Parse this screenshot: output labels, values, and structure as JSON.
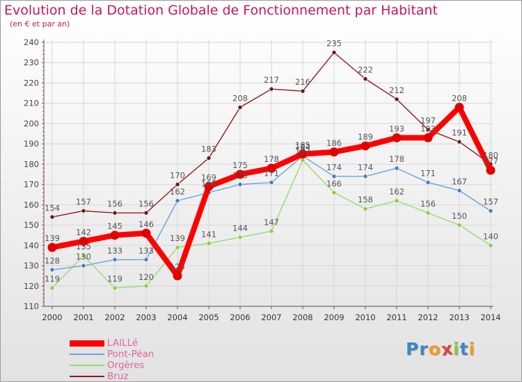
{
  "title": "Evolution de la Dotation Globale de Fonctionnement par Habitant",
  "subtitle": "(en € et par an)",
  "logo": {
    "text": "Proxiti",
    "letter_colors": [
      "#3b87c8",
      "#3b87c8",
      "#f39a1e",
      "#e0403a",
      "#8cc63f",
      "#3b87c8",
      "#f39a1e"
    ]
  },
  "colors": {
    "title": "#c2185b",
    "legend_text": "#e0669a",
    "grid": "#d6d6d6",
    "axis": "#555555"
  },
  "chart_data": {
    "type": "line",
    "title": "Evolution de la Dotation Globale de Fonctionnement par Habitant",
    "subtitle": "(en € et par an)",
    "x": [
      "2000",
      "2001",
      "2002",
      "2003",
      "2004",
      "2005",
      "2006",
      "2007",
      "2008",
      "2009",
      "2010",
      "2011",
      "2012",
      "2013",
      "2014"
    ],
    "ylim": [
      110,
      240
    ],
    "yticks": [
      110,
      120,
      130,
      140,
      150,
      160,
      170,
      180,
      190,
      200,
      210,
      220,
      230,
      240
    ],
    "grid": true,
    "legend_position": "bottom-left",
    "series": [
      {
        "name": "Bruz",
        "color": "#8b1a1a",
        "marker_color": "#6b1616",
        "emphasis": false,
        "values": [
          154,
          157,
          156,
          156,
          170,
          183,
          208,
          217,
          216,
          235,
          222,
          212,
          197,
          191,
          180
        ]
      },
      {
        "name": "Orgères",
        "color": "#99d96b",
        "marker_color": "#88cc44",
        "emphasis": false,
        "values": [
          119,
          135,
          119,
          120,
          139,
          141,
          144,
          147,
          182,
          166,
          158,
          162,
          156,
          150,
          140
        ]
      },
      {
        "name": "Pont-Péan",
        "color": "#6aa3d8",
        "marker_color": "#3d80c4",
        "emphasis": false,
        "values": [
          128,
          130,
          133,
          133,
          162,
          166,
          170,
          171,
          184,
          174,
          174,
          178,
          171,
          167,
          157
        ]
      },
      {
        "name": "LAILLé",
        "color": "#ff0000",
        "marker_color": "#e00000",
        "emphasis": true,
        "values": [
          139,
          142,
          145,
          146,
          125,
          169,
          175,
          178,
          185,
          186,
          189,
          193,
          193,
          208,
          177
        ]
      }
    ],
    "legend_order": [
      "LAILLé",
      "Pont-Péan",
      "Orgères",
      "Bruz"
    ]
  }
}
